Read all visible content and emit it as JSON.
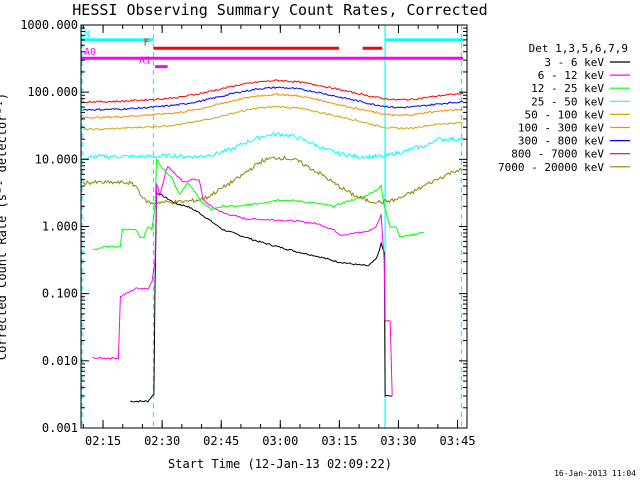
{
  "chart_data": {
    "type": "line",
    "title": "HESSI Observing Summary Count Rates, Corrected",
    "xlabel": "Start Time (12-Jan-13 02:09:22)",
    "ylabel": "Corrected Count Rate (s⁻¹ detector⁻¹)",
    "footer": "16-Jan-2013 11:04",
    "x_units": "minutes after 02:09:22",
    "xlim": [
      0,
      98
    ],
    "ylim": [
      0.001,
      1000
    ],
    "y_scale": "log",
    "x_ticks": [
      {
        "value": 5.6,
        "label": "02:15"
      },
      {
        "value": 20.6,
        "label": "02:30"
      },
      {
        "value": 35.6,
        "label": "02:45"
      },
      {
        "value": 50.6,
        "label": "03:00"
      },
      {
        "value": 65.6,
        "label": "03:15"
      },
      {
        "value": 80.6,
        "label": "03:30"
      },
      {
        "value": 95.6,
        "label": "03:45"
      }
    ],
    "y_ticks": [
      {
        "value": 1000,
        "label": "1000.000"
      },
      {
        "value": 100,
        "label": "100.000"
      },
      {
        "value": 10,
        "label": "10.000"
      },
      {
        "value": 1,
        "label": "1.000"
      },
      {
        "value": 0.1,
        "label": "0.100"
      },
      {
        "value": 0.01,
        "label": "0.010"
      },
      {
        "value": 0.001,
        "label": "0.001"
      }
    ],
    "legend_title": "Det 1,3,5,6,7,9",
    "legend_position": "right",
    "series": [
      {
        "name": "3 - 6 keV",
        "color": "#000000",
        "points": [
          [
            12.5,
            0.0025
          ],
          [
            17,
            0.0025
          ],
          [
            18.5,
            0.0032
          ],
          [
            18.8,
            0.12
          ],
          [
            19.2,
            3.2
          ],
          [
            21,
            2.8
          ],
          [
            24,
            2.2
          ],
          [
            27,
            2.0
          ],
          [
            30,
            1.6
          ],
          [
            33,
            1.2
          ],
          [
            36,
            0.9
          ],
          [
            40,
            0.75
          ],
          [
            45,
            0.6
          ],
          [
            50,
            0.5
          ],
          [
            55,
            0.42
          ],
          [
            60,
            0.36
          ],
          [
            65,
            0.3
          ],
          [
            70,
            0.27
          ],
          [
            73,
            0.26
          ],
          [
            75,
            0.33
          ],
          [
            76.2,
            0.55
          ],
          [
            77,
            0.4
          ],
          [
            77.2,
            0.003
          ],
          [
            79,
            0.003
          ]
        ]
      },
      {
        "name": "6 - 12 keV",
        "color": "#ff00ff",
        "points": [
          [
            3,
            0.011
          ],
          [
            9,
            0.011
          ],
          [
            9.5,
            0.011
          ],
          [
            10,
            0.09
          ],
          [
            14,
            0.12
          ],
          [
            16,
            0.12
          ],
          [
            17,
            0.12
          ],
          [
            18,
            0.15
          ],
          [
            18.8,
            0.3
          ],
          [
            19.2,
            4.5
          ],
          [
            20,
            3.0
          ],
          [
            22,
            8
          ],
          [
            24,
            6
          ],
          [
            26,
            4.5
          ],
          [
            28,
            5
          ],
          [
            30,
            5
          ],
          [
            31,
            2.5
          ],
          [
            33,
            2.0
          ],
          [
            36,
            1.6
          ],
          [
            42,
            1.3
          ],
          [
            50,
            1.25
          ],
          [
            55,
            1.2
          ],
          [
            60,
            1.1
          ],
          [
            64,
            0.9
          ],
          [
            66,
            0.75
          ],
          [
            70,
            0.8
          ],
          [
            73,
            0.85
          ],
          [
            75,
            1.0
          ],
          [
            76.2,
            1.5
          ],
          [
            77,
            0.3
          ],
          [
            77.2,
            0.04
          ],
          [
            78.5,
            0.04
          ],
          [
            79,
            0.003
          ]
        ]
      },
      {
        "name": "12 - 25 keV",
        "color": "#00ff00",
        "points": [
          [
            3,
            0.45
          ],
          [
            6,
            0.5
          ],
          [
            10,
            0.5
          ],
          [
            10.5,
            0.9
          ],
          [
            14,
            0.9
          ],
          [
            15,
            0.7
          ],
          [
            16,
            0.7
          ],
          [
            17,
            1.0
          ],
          [
            18,
            0.9
          ],
          [
            18.8,
            2.0
          ],
          [
            19.2,
            10
          ],
          [
            21,
            7
          ],
          [
            23,
            5.5
          ],
          [
            25,
            3.0
          ],
          [
            27,
            4.5
          ],
          [
            29,
            3.2
          ],
          [
            31,
            2.2
          ],
          [
            33,
            1.8
          ],
          [
            36,
            2.0
          ],
          [
            40,
            2.0
          ],
          [
            45,
            2.2
          ],
          [
            50,
            2.5
          ],
          [
            55,
            2.4
          ],
          [
            60,
            2.2
          ],
          [
            64,
            2.0
          ],
          [
            68,
            2.4
          ],
          [
            72,
            2.8
          ],
          [
            75,
            3.5
          ],
          [
            76.2,
            4.0
          ],
          [
            77,
            2.0
          ],
          [
            78.5,
            1.0
          ],
          [
            80,
            1.0
          ],
          [
            81,
            0.7
          ],
          [
            84,
            0.75
          ],
          [
            86,
            0.8
          ],
          [
            87,
            0.8
          ]
        ]
      },
      {
        "name": "25 - 50 keV",
        "color": "#00ffff",
        "points": [
          [
            0.5,
            11
          ],
          [
            1.5,
            10
          ],
          [
            3,
            11
          ],
          [
            8,
            11
          ],
          [
            12,
            11
          ],
          [
            16,
            11
          ],
          [
            19,
            11
          ],
          [
            22,
            11.5
          ],
          [
            26,
            11
          ],
          [
            30,
            11
          ],
          [
            34,
            12
          ],
          [
            38,
            14
          ],
          [
            42,
            18
          ],
          [
            46,
            22
          ],
          [
            50,
            24
          ],
          [
            54,
            22
          ],
          [
            58,
            18
          ],
          [
            62,
            14
          ],
          [
            66,
            12
          ],
          [
            70,
            11
          ],
          [
            74,
            11
          ],
          [
            76,
            11
          ],
          [
            77.2,
            11
          ],
          [
            79,
            12
          ],
          [
            82,
            13
          ],
          [
            85,
            15
          ],
          [
            88,
            16
          ],
          [
            90,
            20
          ],
          [
            92,
            20
          ],
          [
            94,
            20
          ],
          [
            97,
            20
          ]
        ]
      },
      {
        "name": "50 - 100 keV",
        "color": "#ccaa00",
        "points": [
          [
            0.5,
            28
          ],
          [
            5,
            28
          ],
          [
            10,
            29
          ],
          [
            15,
            30
          ],
          [
            20,
            31
          ],
          [
            25,
            33
          ],
          [
            30,
            37
          ],
          [
            35,
            43
          ],
          [
            40,
            51
          ],
          [
            45,
            58
          ],
          [
            50,
            61
          ],
          [
            55,
            58
          ],
          [
            60,
            51
          ],
          [
            65,
            44
          ],
          [
            70,
            38
          ],
          [
            74,
            33
          ],
          [
            77,
            30
          ],
          [
            80,
            29
          ],
          [
            84,
            29
          ],
          [
            88,
            32
          ],
          [
            92,
            34
          ],
          [
            97,
            35
          ]
        ]
      },
      {
        "name": "100 - 300 keV",
        "color": "#ff8800",
        "points": [
          [
            0.5,
            42
          ],
          [
            5,
            42
          ],
          [
            10,
            43
          ],
          [
            15,
            45
          ],
          [
            20,
            47
          ],
          [
            25,
            50
          ],
          [
            30,
            56
          ],
          [
            35,
            66
          ],
          [
            40,
            78
          ],
          [
            45,
            88
          ],
          [
            50,
            93
          ],
          [
            55,
            88
          ],
          [
            60,
            78
          ],
          [
            65,
            66
          ],
          [
            70,
            57
          ],
          [
            74,
            51
          ],
          [
            77,
            47
          ],
          [
            80,
            45
          ],
          [
            84,
            46
          ],
          [
            88,
            50
          ],
          [
            92,
            53
          ],
          [
            97,
            55
          ]
        ]
      },
      {
        "name": "300 - 800 keV",
        "color": "#0000ff",
        "points": [
          [
            0.5,
            55
          ],
          [
            5,
            55
          ],
          [
            10,
            56
          ],
          [
            15,
            58
          ],
          [
            20,
            61
          ],
          [
            25,
            65
          ],
          [
            30,
            73
          ],
          [
            35,
            85
          ],
          [
            40,
            100
          ],
          [
            45,
            112
          ],
          [
            50,
            118
          ],
          [
            55,
            112
          ],
          [
            60,
            100
          ],
          [
            65,
            86
          ],
          [
            70,
            75
          ],
          [
            74,
            66
          ],
          [
            77,
            62
          ],
          [
            80,
            59
          ],
          [
            84,
            60
          ],
          [
            88,
            64
          ],
          [
            92,
            68
          ],
          [
            97,
            72
          ]
        ]
      },
      {
        "name": "800 - 7000 keV",
        "color": "#ff0000",
        "points": [
          [
            0.5,
            72
          ],
          [
            5,
            72
          ],
          [
            10,
            73
          ],
          [
            15,
            76
          ],
          [
            20,
            79
          ],
          [
            25,
            84
          ],
          [
            30,
            95
          ],
          [
            35,
            110
          ],
          [
            40,
            128
          ],
          [
            45,
            142
          ],
          [
            50,
            150
          ],
          [
            55,
            142
          ],
          [
            60,
            128
          ],
          [
            65,
            111
          ],
          [
            70,
            96
          ],
          [
            74,
            86
          ],
          [
            77,
            80
          ],
          [
            80,
            77
          ],
          [
            84,
            78
          ],
          [
            88,
            84
          ],
          [
            92,
            90
          ],
          [
            97,
            95
          ]
        ]
      },
      {
        "name": "7000 - 20000 keV",
        "color": "#888800",
        "points": [
          [
            0.5,
            4.5
          ],
          [
            4,
            4.5
          ],
          [
            8,
            4.5
          ],
          [
            12,
            4.5
          ],
          [
            14,
            4.0
          ],
          [
            16,
            2.5
          ],
          [
            18,
            2.2
          ],
          [
            20,
            2.3
          ],
          [
            24,
            2.3
          ],
          [
            28,
            2.4
          ],
          [
            30,
            2.5
          ],
          [
            32,
            2.7
          ],
          [
            35,
            3.5
          ],
          [
            38,
            4.5
          ],
          [
            40,
            5.3
          ],
          [
            43,
            7.2
          ],
          [
            46,
            9.5
          ],
          [
            49,
            10.5
          ],
          [
            52,
            10.5
          ],
          [
            55,
            9.5
          ],
          [
            58,
            7.5
          ],
          [
            61,
            6.0
          ],
          [
            64,
            4.5
          ],
          [
            67,
            3.5
          ],
          [
            70,
            2.8
          ],
          [
            73,
            2.4
          ],
          [
            76,
            2.3
          ],
          [
            78,
            2.4
          ],
          [
            80,
            2.5
          ],
          [
            84,
            3.2
          ],
          [
            88,
            4.3
          ],
          [
            92,
            5.6
          ],
          [
            95,
            6.8
          ],
          [
            97,
            7.0
          ]
        ]
      }
    ],
    "vertical_lines": [
      {
        "x": 0,
        "color": "#00ffff",
        "style": "dashed"
      },
      {
        "x": 18.4,
        "color": "#00ffff",
        "style": "dashed"
      },
      {
        "x": 77.2,
        "color": "#00ffff",
        "style": "solid"
      },
      {
        "x": 96.6,
        "color": "#00ffff",
        "style": "dashed"
      }
    ],
    "flags": [
      {
        "label": "N",
        "color": "#00ffff",
        "level": 600,
        "segments": [
          [
            0,
            18.4
          ],
          [
            77.2,
            97
          ]
        ]
      },
      {
        "label": "F",
        "color": "#ff0000",
        "level": 450,
        "segments": [
          [
            18.4,
            65.5
          ],
          [
            71.5,
            76.5
          ]
        ]
      },
      {
        "label": "A0",
        "color": "#ff00ff",
        "level": 320,
        "segments": [
          [
            0,
            97
          ]
        ]
      },
      {
        "label": "A1",
        "color": "#ff00ff",
        "level": 240,
        "segments": [
          [
            18.8,
            22
          ]
        ]
      }
    ]
  }
}
